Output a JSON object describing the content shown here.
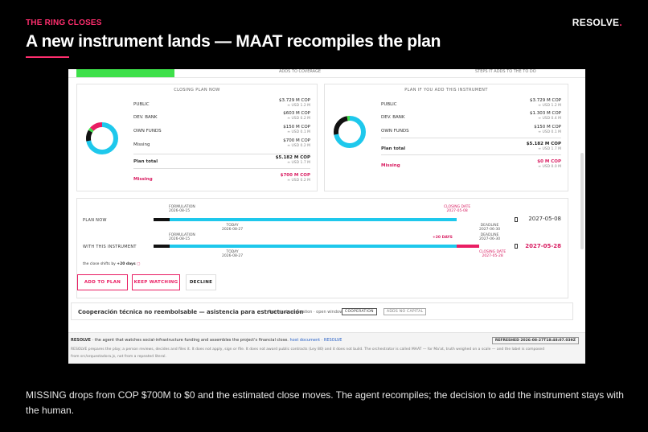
{
  "slide": {
    "kicker": "THE RING CLOSES",
    "brand": "RESOLVE",
    "brand_dot": ".",
    "headline": "A new instrument lands — MAAT recompiles the plan",
    "caption": "MISSING drops from COP $700M to $0 and the estimated close moves. The agent recompiles; the decision to add the instrument stays with the human.",
    "accent_color": "#ff2e6e"
  },
  "screenshot": {
    "strip": {
      "left_text": "ADDS TO COVERAGE",
      "right_text": "STEPS IT ADDS TO THE TO DO"
    },
    "closing_plan": {
      "title": "CLOSING PLAN NOW",
      "rows": [
        {
          "label": "PUBLIC",
          "value": "$3.729 M COP",
          "sub": "≈ USD 1.2 M"
        },
        {
          "label": "DEV. BANK",
          "value": "$603 M COP",
          "sub": "≈ USD 0.2 M"
        },
        {
          "label": "OWN FUNDS",
          "value": "$150 M COP",
          "sub": "≈ USD 0.1 M"
        },
        {
          "label": "Missing",
          "value": "$700 M COP",
          "sub": "≈ USD 0.2 M"
        }
      ],
      "total_label": "Plan total",
      "total_value": "$5.182 M COP",
      "total_sub": "≈ USD 1.7 M",
      "missing_label": "Missing",
      "missing_value": "$700 M COP",
      "missing_sub": "≈ USD 0.2 M",
      "donut": [
        {
          "name": "Public",
          "share": 0.72,
          "color": "#1ec8ec"
        },
        {
          "name": "Dev. bank",
          "share": 0.116,
          "color": "#111111"
        },
        {
          "name": "Own funds",
          "share": 0.029,
          "color": "#3ee04a"
        },
        {
          "name": "Missing",
          "share": 0.135,
          "color": "#e91e63"
        }
      ]
    },
    "new_plan": {
      "title": "PLAN IF YOU ADD THIS INSTRUMENT",
      "rows": [
        {
          "label": "PUBLIC",
          "value": "$3.729 M COP",
          "sub": "≈ USD 1.2 M"
        },
        {
          "label": "DEV. BANK",
          "value": "$1.303 M COP",
          "sub": "≈ USD 0.4 M"
        },
        {
          "label": "OWN FUNDS",
          "value": "$150 M COP",
          "sub": "≈ USD 0.1 M"
        }
      ],
      "total_label": "Plan total",
      "total_value": "$5.182 M COP",
      "total_sub": "≈ USD 1.7 M",
      "missing_label": "Missing",
      "missing_value": "$0 M COP",
      "missing_sub": "≈ USD 0.0 M",
      "donut": [
        {
          "name": "Public",
          "share": 0.72,
          "color": "#1ec8ec"
        },
        {
          "name": "Dev. bank",
          "share": 0.251,
          "color": "#111111"
        },
        {
          "name": "Own funds",
          "share": 0.029,
          "color": "#3ee04a"
        }
      ]
    },
    "timeline": {
      "plan_now": {
        "label": "PLAN NOW",
        "formulation_label": "FORMULATION",
        "formulation_date": "2026-08-15",
        "today_label": "TODAY",
        "today_date": "2026-08-27",
        "closing_label": "CLOSING DATE",
        "closing_date": "2027-05-08",
        "deadline_label": "DEADLINE",
        "deadline_date": "2027-06-30",
        "end_date": "2027-05-08"
      },
      "with_instrument": {
        "label": "WITH THIS INSTRUMENT",
        "formulation_label": "FORMULATION",
        "formulation_date": "2026-08-15",
        "today_label": "TODAY",
        "today_date": "2026-08-27",
        "shift_badge": "+20 DAYS",
        "deadline_label": "DEADLINE",
        "deadline_date": "2027-06-30",
        "closing_label": "CLOSING DATE",
        "closing_date": "2027-05-28",
        "end_date": "2027-05-28"
      },
      "note_prefix": "the close shifts by",
      "note_value": "+20 days"
    },
    "actions": {
      "add": "ADD TO PLAN",
      "keep": "KEEP WATCHING",
      "decline": "DECLINE"
    },
    "instrument": {
      "name": "Cooperación técnica no reembolsable — asistencia para estructuración",
      "desc": "Technical cooperation · open window",
      "tags": [
        "COOPERATION",
        "ADDS NO CAPITAL"
      ]
    },
    "footer": {
      "brand": "RESOLVE",
      "tagline": "· the agent that watches social-infrastructure funding and assembles the project's financial close.",
      "link": "host document · RESOLVE",
      "refreshed": "REFRESHED 2026-08-27T18:48:07.039Z",
      "disclaimer": "RESOLVE prepares the play; a person reviews, decides and files it. It does not apply, sign or file. It does not award public contracts (Ley 80) and it does not build. The orchestrator is called MAAT — for Ma'at, truth weighed on a scale — and the label is composed",
      "disclaimer2": "from src/orquestadora.js, not from a repeated literal."
    }
  }
}
